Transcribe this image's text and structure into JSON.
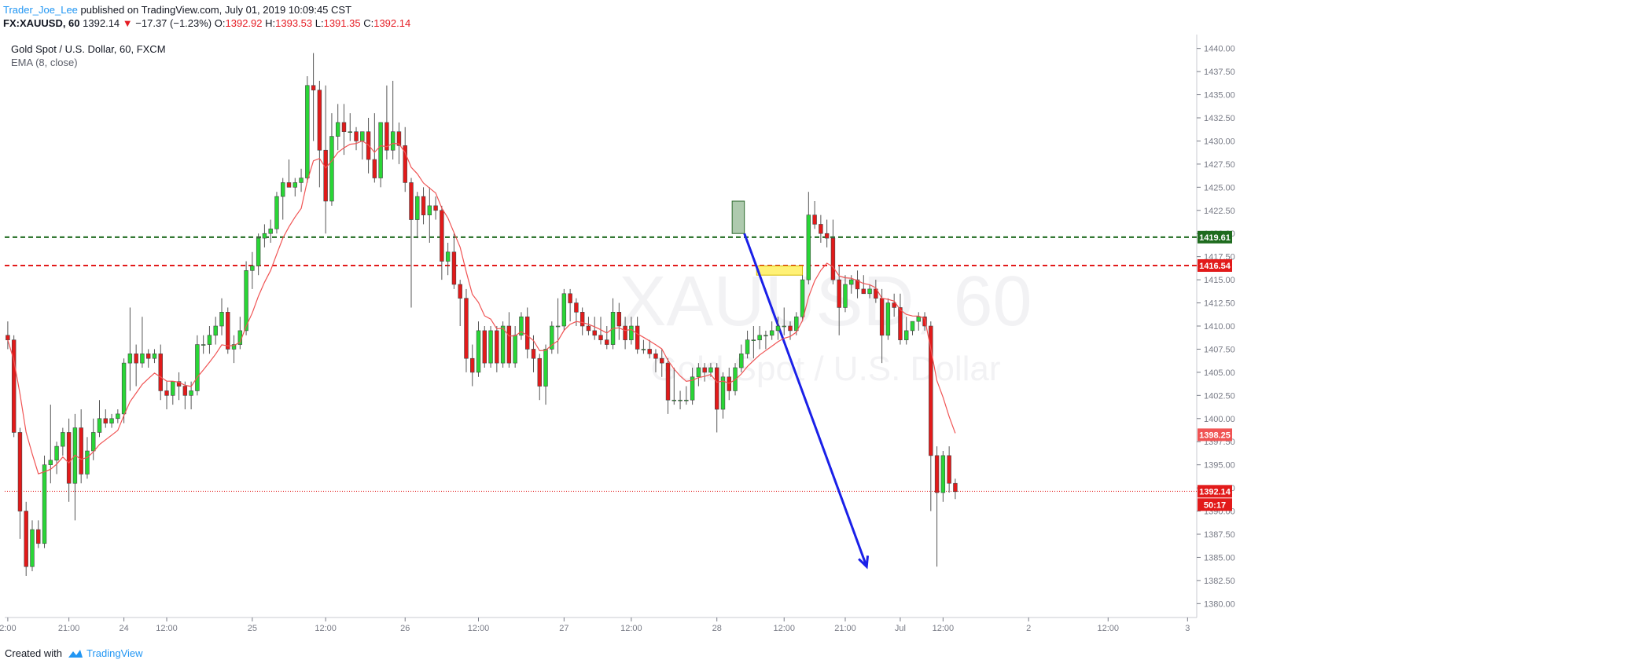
{
  "header": {
    "author": "Trader_Joe_Lee",
    "published": "published on TradingView.com, July 01, 2019 10:09:45 CST",
    "symbol": "FX:XAUUSD, 60",
    "last": "1392.14",
    "arrow": "▼",
    "change": "−17.37 (−1.23%)",
    "o_label": "O:",
    "o_value": "1392.92",
    "h_label": "H:",
    "h_value": "1393.53",
    "l_label": "L:",
    "l_value": "1391.35",
    "c_label": "C:",
    "c_value": "1392.14"
  },
  "legend": {
    "title": "Gold Spot / U.S. Dollar, 60, FXCM",
    "indicator": "EMA (8, close)"
  },
  "watermark": {
    "line1": "XAUUSD, 60",
    "line2": "Gold Spot / U.S. Dollar"
  },
  "footer": {
    "created": "Created with",
    "brand": "TradingView",
    "logo": "tradingview-logo-icon"
  },
  "colors": {
    "up": "#29d636",
    "down": "#e21a1a",
    "ema": "#f05454",
    "support": "#1e6b1e",
    "resistance": "#e21a1a",
    "arrow": "#1a20e8",
    "axis": "#787b86"
  },
  "chart_data": {
    "type": "candlestick",
    "title": "Gold Spot / U.S. Dollar, 60, FXCM",
    "ylim": [
      1378.5,
      1441.5
    ],
    "xlim": [
      -0.5,
      194.5
    ],
    "y_ticks": [
      "1380.00",
      "1382.50",
      "1385.00",
      "1387.50",
      "1390.00",
      "1392.50",
      "1395.00",
      "1397.50",
      "1400.00",
      "1402.50",
      "1405.00",
      "1407.50",
      "1410.00",
      "1412.50",
      "1415.00",
      "1417.50",
      "1420.00",
      "1422.50",
      "1425.00",
      "1427.50",
      "1430.00",
      "1432.50",
      "1435.00",
      "1437.50",
      "1440.00"
    ],
    "x_ticks": [
      {
        "i": 0,
        "label": "2:00"
      },
      {
        "i": 10,
        "label": "21:00"
      },
      {
        "i": 19,
        "label": "24"
      },
      {
        "i": 26,
        "label": "12:00"
      },
      {
        "i": 40,
        "label": "25"
      },
      {
        "i": 52,
        "label": "12:00"
      },
      {
        "i": 65,
        "label": "26"
      },
      {
        "i": 77,
        "label": "12:00"
      },
      {
        "i": 91,
        "label": "27"
      },
      {
        "i": 102,
        "label": "12:00"
      },
      {
        "i": 116,
        "label": "28"
      },
      {
        "i": 127,
        "label": "12:00"
      },
      {
        "i": 137,
        "label": "21:00"
      },
      {
        "i": 146,
        "label": "Jul"
      },
      {
        "i": 153,
        "label": "12:00"
      },
      {
        "i": 167,
        "label": "2"
      },
      {
        "i": 180,
        "label": "12:00"
      },
      {
        "i": 193,
        "label": "3"
      }
    ],
    "ohlc": [
      [
        1409,
        1410.5,
        1407.5,
        1408.5
      ],
      [
        1408.5,
        1409,
        1398,
        1398.5
      ],
      [
        1398.5,
        1399,
        1387,
        1390
      ],
      [
        1390,
        1391,
        1383,
        1384
      ],
      [
        1384,
        1389,
        1383.5,
        1388
      ],
      [
        1388,
        1389,
        1386,
        1386.5
      ],
      [
        1386.5,
        1396,
        1386,
        1395
      ],
      [
        1395,
        1401.5,
        1393,
        1395.5
      ],
      [
        1395.5,
        1397.5,
        1394,
        1397
      ],
      [
        1397,
        1399,
        1396,
        1398.5
      ],
      [
        1398.5,
        1400,
        1391,
        1393
      ],
      [
        1393,
        1400.5,
        1389,
        1399
      ],
      [
        1399,
        1401,
        1393,
        1394
      ],
      [
        1394,
        1398,
        1393.5,
        1396.5
      ],
      [
        1396.5,
        1400,
        1395.5,
        1398.5
      ],
      [
        1398.5,
        1402,
        1398,
        1400
      ],
      [
        1400,
        1401,
        1399,
        1399.5
      ],
      [
        1399.5,
        1400.5,
        1399,
        1400
      ],
      [
        1400,
        1401,
        1399.5,
        1400.5
      ],
      [
        1400.5,
        1406.5,
        1399.5,
        1406
      ],
      [
        1406,
        1412,
        1403,
        1407
      ],
      [
        1407,
        1408,
        1403.5,
        1406
      ],
      [
        1406,
        1411,
        1405.5,
        1407
      ],
      [
        1407,
        1407.5,
        1405.5,
        1406.5
      ],
      [
        1406.5,
        1407.5,
        1406,
        1407
      ],
      [
        1407,
        1408,
        1402,
        1403
      ],
      [
        1403,
        1404,
        1401,
        1402.5
      ],
      [
        1402.5,
        1404,
        1401.5,
        1404
      ],
      [
        1404,
        1405,
        1402,
        1403.5
      ],
      [
        1403.5,
        1404,
        1401,
        1402.5
      ],
      [
        1402.5,
        1404,
        1401,
        1403
      ],
      [
        1403,
        1409,
        1402.5,
        1408
      ],
      [
        1408,
        1409,
        1407,
        1408
      ],
      [
        1408,
        1410,
        1407,
        1409
      ],
      [
        1409,
        1411,
        1408,
        1410
      ],
      [
        1410,
        1413,
        1409,
        1411.5
      ],
      [
        1411.5,
        1412,
        1407,
        1407.5
      ],
      [
        1407.5,
        1409,
        1406,
        1408
      ],
      [
        1408,
        1411,
        1407.5,
        1409.5
      ],
      [
        1409.5,
        1417,
        1409,
        1416
      ],
      [
        1416,
        1418,
        1414,
        1416.5
      ],
      [
        1416.5,
        1420,
        1415.5,
        1419.5
      ],
      [
        1419.5,
        1421,
        1418.5,
        1420
      ],
      [
        1420,
        1421.5,
        1419,
        1420.5
      ],
      [
        1420.5,
        1424.5,
        1420,
        1424
      ],
      [
        1424,
        1426,
        1421.5,
        1425.5
      ],
      [
        1425.5,
        1428,
        1425,
        1425
      ],
      [
        1425,
        1426,
        1424,
        1425.5
      ],
      [
        1425.5,
        1427,
        1424.5,
        1426
      ],
      [
        1426,
        1437,
        1425.5,
        1436
      ],
      [
        1436,
        1439.5,
        1430,
        1435.5
      ],
      [
        1435.5,
        1436.5,
        1425,
        1429
      ],
      [
        1429,
        1436,
        1420,
        1423.5
      ],
      [
        1423.5,
        1433,
        1423,
        1430.5
      ],
      [
        1430.5,
        1434,
        1429,
        1432
      ],
      [
        1432,
        1434,
        1428.5,
        1431
      ],
      [
        1431,
        1433,
        1430,
        1431
      ],
      [
        1431,
        1431.5,
        1429,
        1430
      ],
      [
        1430,
        1431,
        1428,
        1431
      ],
      [
        1431,
        1432.5,
        1426.5,
        1428
      ],
      [
        1428,
        1433,
        1425.5,
        1426
      ],
      [
        1426,
        1432,
        1425,
        1432
      ],
      [
        1432,
        1436,
        1428,
        1429
      ],
      [
        1429,
        1436.5,
        1428,
        1431
      ],
      [
        1431,
        1432,
        1427.5,
        1429.5
      ],
      [
        1429.5,
        1431.5,
        1424.5,
        1425.5
      ],
      [
        1425.5,
        1426,
        1412,
        1421.5
      ],
      [
        1421.5,
        1424.5,
        1419.5,
        1424
      ],
      [
        1424,
        1425,
        1421,
        1422
      ],
      [
        1422,
        1425,
        1419,
        1423
      ],
      [
        1423,
        1424,
        1421.5,
        1422.5
      ],
      [
        1422.5,
        1423,
        1415,
        1417
      ],
      [
        1417,
        1419,
        1415.5,
        1418
      ],
      [
        1418,
        1420,
        1414,
        1414.5
      ],
      [
        1414.5,
        1415,
        1410,
        1413
      ],
      [
        1413,
        1414,
        1405,
        1406.5
      ],
      [
        1406.5,
        1408,
        1403.5,
        1405
      ],
      [
        1405,
        1410.5,
        1404.5,
        1409.5
      ],
      [
        1409.5,
        1410,
        1405.5,
        1406
      ],
      [
        1406,
        1410,
        1405.5,
        1409.5
      ],
      [
        1409.5,
        1410,
        1405,
        1406
      ],
      [
        1406,
        1410.5,
        1405.5,
        1410
      ],
      [
        1410,
        1411.5,
        1405.5,
        1406
      ],
      [
        1406,
        1410,
        1405.5,
        1409
      ],
      [
        1409,
        1411.5,
        1408.5,
        1411
      ],
      [
        1411,
        1412,
        1406.5,
        1407.5
      ],
      [
        1407.5,
        1409,
        1405,
        1406.5
      ],
      [
        1406.5,
        1407,
        1402,
        1403.5
      ],
      [
        1403.5,
        1408,
        1401.5,
        1407.5
      ],
      [
        1407.5,
        1410.5,
        1407,
        1410
      ],
      [
        1410,
        1413,
        1407,
        1410
      ],
      [
        1410,
        1414,
        1409.5,
        1413.5
      ],
      [
        1413.5,
        1414,
        1410.5,
        1412.5
      ],
      [
        1412.5,
        1413,
        1410,
        1411.5
      ],
      [
        1411.5,
        1412,
        1409,
        1410
      ],
      [
        1410,
        1411,
        1409,
        1409.5
      ],
      [
        1409.5,
        1411,
        1408.5,
        1409
      ],
      [
        1409,
        1411,
        1408,
        1408.5
      ],
      [
        1408.5,
        1410,
        1407.5,
        1408
      ],
      [
        1408,
        1413,
        1407.5,
        1411.5
      ],
      [
        1411.5,
        1412.5,
        1408.5,
        1410
      ],
      [
        1410,
        1411,
        1407.5,
        1408.5
      ],
      [
        1408.5,
        1411,
        1408,
        1410
      ],
      [
        1410,
        1411,
        1407,
        1407.5
      ],
      [
        1407.5,
        1408.5,
        1407,
        1407.5
      ],
      [
        1407.5,
        1408.5,
        1406.5,
        1407
      ],
      [
        1407,
        1407.5,
        1405,
        1406.5
      ],
      [
        1406.5,
        1407.5,
        1404.5,
        1406
      ],
      [
        1406,
        1406.5,
        1400.5,
        1402
      ],
      [
        1402,
        1405.5,
        1401.5,
        1402
      ],
      [
        1402,
        1403,
        1401,
        1402
      ],
      [
        1402,
        1403.5,
        1401.5,
        1402
      ],
      [
        1402,
        1405.5,
        1401.5,
        1404.5
      ],
      [
        1404.5,
        1406,
        1403.5,
        1405.5
      ],
      [
        1405.5,
        1406,
        1404,
        1405
      ],
      [
        1405,
        1406,
        1404.5,
        1405.5
      ],
      [
        1405.5,
        1406,
        1398.5,
        1401
      ],
      [
        1401,
        1405,
        1400,
        1404.5
      ],
      [
        1404.5,
        1405.5,
        1402,
        1403
      ],
      [
        1403,
        1406,
        1402.5,
        1405.5
      ],
      [
        1405.5,
        1408,
        1405,
        1407
      ],
      [
        1407,
        1409.5,
        1406.5,
        1408.5
      ],
      [
        1408.5,
        1410,
        1406.5,
        1408.5
      ],
      [
        1408.5,
        1410,
        1407.5,
        1409
      ],
      [
        1409,
        1409.5,
        1407.5,
        1409
      ],
      [
        1409,
        1410.5,
        1408.5,
        1409.5
      ],
      [
        1409.5,
        1411,
        1408.5,
        1410
      ],
      [
        1410,
        1412,
        1409,
        1410
      ],
      [
        1410,
        1410.5,
        1408.5,
        1409.5
      ],
      [
        1409.5,
        1411.5,
        1409,
        1411
      ],
      [
        1411,
        1415.5,
        1410.5,
        1415
      ],
      [
        1415,
        1424.5,
        1414.5,
        1422
      ],
      [
        1422,
        1423.5,
        1420.5,
        1421
      ],
      [
        1421,
        1422,
        1419,
        1420
      ],
      [
        1420,
        1421.5,
        1418.5,
        1419.5
      ],
      [
        1419.5,
        1421.5,
        1414.5,
        1415
      ],
      [
        1415,
        1416.5,
        1409,
        1412
      ],
      [
        1412,
        1415.5,
        1411.5,
        1414.5
      ],
      [
        1414.5,
        1415.5,
        1413.5,
        1415
      ],
      [
        1415,
        1416,
        1413,
        1414
      ],
      [
        1414,
        1415.5,
        1413.5,
        1413.5
      ],
      [
        1413.5,
        1414.5,
        1413,
        1414
      ],
      [
        1414,
        1415,
        1412.5,
        1413
      ],
      [
        1413,
        1414,
        1406,
        1409
      ],
      [
        1409,
        1413,
        1408.5,
        1412.5
      ],
      [
        1412.5,
        1413.5,
        1411,
        1412
      ],
      [
        1412,
        1413.5,
        1408,
        1408.5
      ],
      [
        1408.5,
        1411,
        1408,
        1409.5
      ],
      [
        1409.5,
        1410.5,
        1409,
        1410.5
      ],
      [
        1410.5,
        1411.5,
        1409.5,
        1411
      ],
      [
        1411,
        1411.5,
        1409.5,
        1410
      ],
      [
        1410,
        1410.5,
        1390,
        1396
      ],
      [
        1396,
        1397,
        1384,
        1392
      ],
      [
        1392,
        1396.5,
        1391,
        1396
      ],
      [
        1396,
        1397,
        1392,
        1393
      ],
      [
        1393,
        1393.5,
        1391.3,
        1392.1
      ]
    ],
    "horizontal_lines": [
      {
        "name": "support",
        "y": 1419.61,
        "label": "1419.61"
      },
      {
        "name": "resistance",
        "y": 1416.54,
        "label": "1416.54"
      }
    ],
    "price_labels": [
      {
        "name": "ema-value",
        "y": 1398.25,
        "label": "1398.25"
      },
      {
        "name": "last-price",
        "y": 1392.14,
        "label": "1392.14"
      },
      {
        "name": "countdown",
        "y": 1390.7,
        "label": "50:17"
      }
    ],
    "annotations": [
      {
        "name": "green-box",
        "x0": 118.5,
        "x1": 120.5,
        "y0": 1420,
        "y1": 1423.5
      },
      {
        "name": "yellow-box",
        "x0": 122.5,
        "x1": 130,
        "y0": 1415.5,
        "y1": 1416.5
      },
      {
        "name": "blue-arrow",
        "x0": 120.5,
        "y0": 1420,
        "x1": 140.5,
        "y1": 1384
      }
    ]
  }
}
